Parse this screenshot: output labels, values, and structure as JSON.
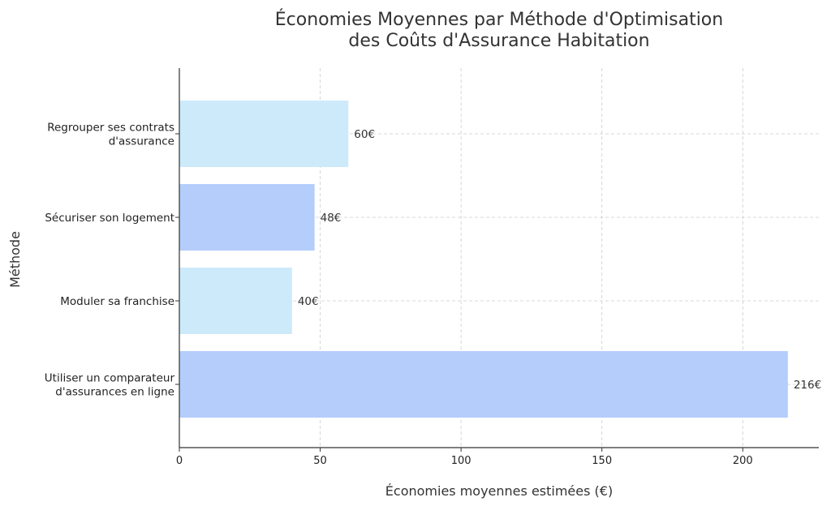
{
  "chart_data": {
    "type": "bar",
    "orientation": "horizontal",
    "title": [
      "Économies Moyennes par Méthode d'Optimisation",
      "des Coûts d'Assurance Habitation"
    ],
    "xlabel": "Économies moyennes estimées (€)",
    "ylabel": "Méthode",
    "xlim": [
      0,
      227
    ],
    "xticks": [
      0,
      50,
      100,
      150,
      200
    ],
    "grid": true,
    "categories": [
      [
        "Regrouper ses contrats",
        "d'assurance"
      ],
      [
        "Sécuriser son logement"
      ],
      [
        "Moduler sa franchise"
      ],
      [
        "Utiliser un comparateur",
        "d'assurances en ligne"
      ]
    ],
    "values": [
      60,
      48,
      40,
      216
    ],
    "value_labels": [
      "60€",
      "48€",
      "40€",
      "216€"
    ],
    "colors": [
      "#cdeafa",
      "#b4cdfb",
      "#cdeafa",
      "#b4cdfb"
    ]
  }
}
